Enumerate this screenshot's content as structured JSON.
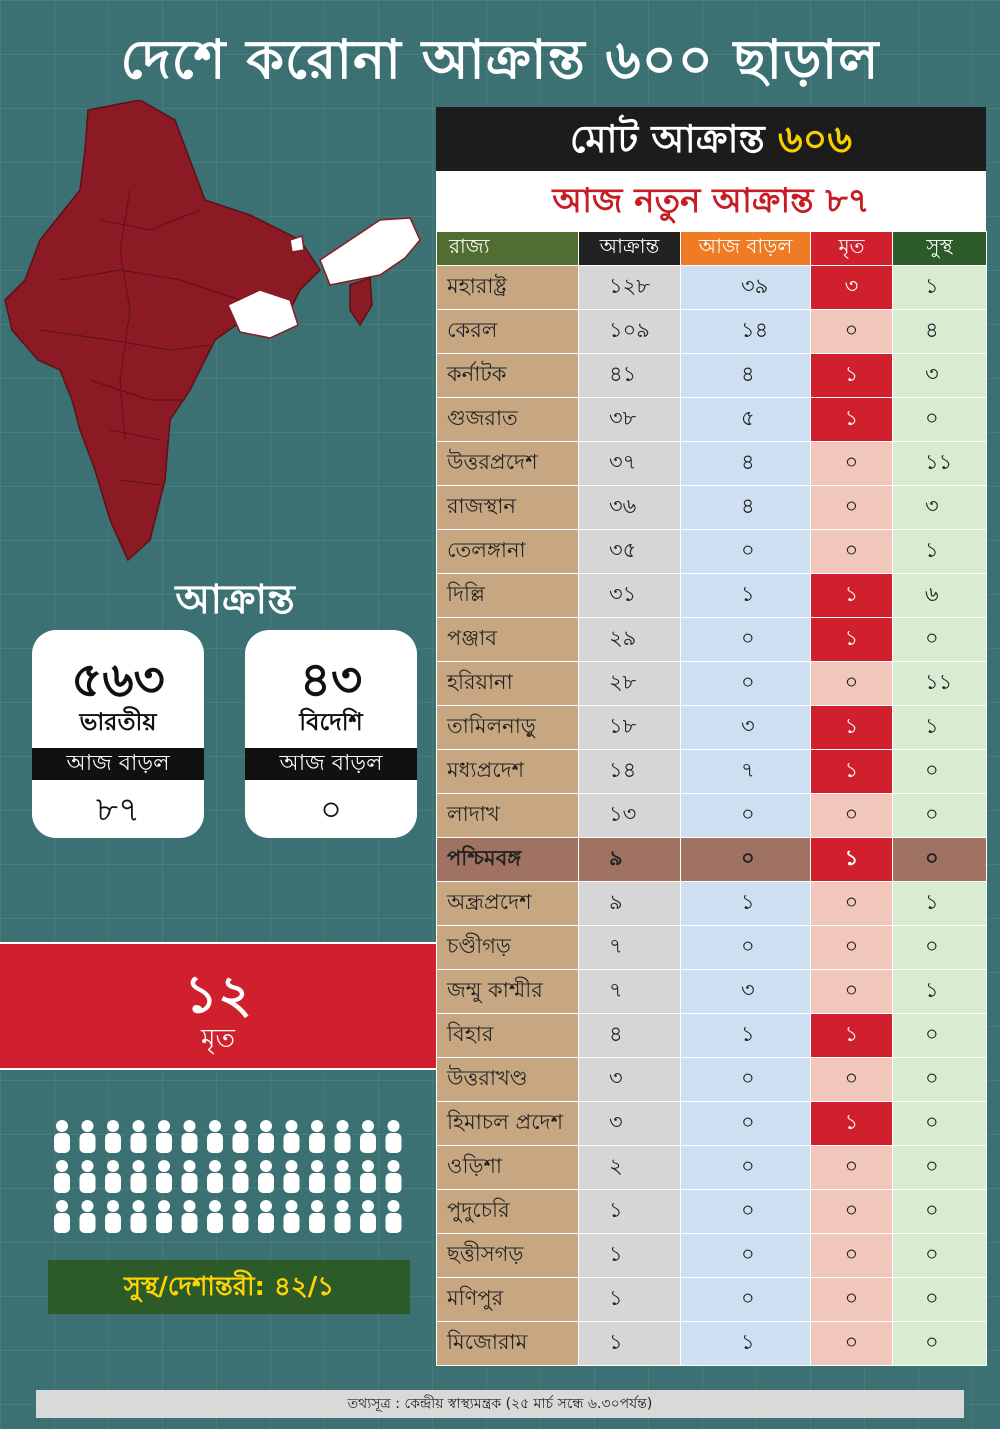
{
  "headline": "দেশে করোনা আক্রান্ত ৬০০ ছাড়াল",
  "affected_label": "আক্রান্ত",
  "cards": [
    {
      "number": "৫৬৩",
      "label": "ভারতীয়",
      "bar": "আজ বাড়ল",
      "increase": "৮৭"
    },
    {
      "number": "৪৩",
      "label": "বিদেশি",
      "bar": "আজ বাড়ল",
      "increase": "০"
    }
  ],
  "deaths": {
    "number": "১২",
    "label": "মৃত"
  },
  "recovered": {
    "text": "সুস্থ/দেশান্তরী: ৪২/১"
  },
  "people_icons": {
    "count": 42
  },
  "panel": {
    "total_label": "মোট আক্রান্ত",
    "total_value": "৬০৬",
    "new_today": "আজ নতুন আক্রান্ত ৮৭",
    "headers": [
      "রাজ্য",
      "আক্রান্ত",
      "আজ বাড়ল",
      "মৃত",
      "সুস্থ"
    ],
    "rows": [
      [
        "মহারাষ্ট্র",
        "১২৮",
        "৩৯",
        "৩",
        "১"
      ],
      [
        "কেরল",
        "১০৯",
        "১৪",
        "০",
        "৪"
      ],
      [
        "কর্নাটক",
        "৪১",
        "৪",
        "১",
        "৩"
      ],
      [
        "গুজরাত",
        "৩৮",
        "৫",
        "১",
        "০"
      ],
      [
        "উত্তরপ্রদেশ",
        "৩৭",
        "৪",
        "০",
        "১১"
      ],
      [
        "রাজস্থান",
        "৩৬",
        "৪",
        "০",
        "৩"
      ],
      [
        "তেলঙ্গানা",
        "৩৫",
        "০",
        "০",
        "১"
      ],
      [
        "দিল্লি",
        "৩১",
        "১",
        "১",
        "৬"
      ],
      [
        "পঞ্জাব",
        "২৯",
        "০",
        "১",
        "০"
      ],
      [
        "হরিয়ানা",
        "২৮",
        "০",
        "০",
        "১১"
      ],
      [
        "তামিলনাড়ু",
        "১৮",
        "৩",
        "১",
        "১"
      ],
      [
        "মধ্যপ্রদেশ",
        "১৪",
        "৭",
        "১",
        "০"
      ],
      [
        "লাদাখ",
        "১৩",
        "০",
        "০",
        "০"
      ],
      [
        "পশ্চিমবঙ্গ",
        "৯",
        "০",
        "১",
        "০"
      ],
      [
        "অন্ধ্রপ্রদেশ",
        "৯",
        "১",
        "০",
        "১"
      ],
      [
        "চণ্ডীগড়",
        "৭",
        "০",
        "০",
        "০"
      ],
      [
        "জম্মু কাশ্মীর",
        "৭",
        "৩",
        "০",
        "১"
      ],
      [
        "বিহার",
        "৪",
        "১",
        "১",
        "০"
      ],
      [
        "উত্তরাখণ্ড",
        "৩",
        "০",
        "০",
        "০"
      ],
      [
        "হিমাচল প্রদেশ",
        "৩",
        "০",
        "১",
        "০"
      ],
      [
        "ওড়িশা",
        "২",
        "০",
        "০",
        "০"
      ],
      [
        "পুদুচেরি",
        "১",
        "০",
        "০",
        "০"
      ],
      [
        "ছত্তীসগড়",
        "১",
        "০",
        "০",
        "০"
      ],
      [
        "মণিপুর",
        "১",
        "০",
        "০",
        "০"
      ],
      [
        "মিজোরাম",
        "১",
        "১",
        "০",
        "০"
      ]
    ],
    "highlight_row": "পশ্চিমবঙ্গ"
  },
  "footer": "তথ্যসূত্র : কেন্দ্রীয় স্বাস্থ্যমন্ত্রক (২৫ মার্চ সন্ধে ৬.৩০পর্যন্ত)",
  "colors": {
    "background": "#3b7173",
    "map_fill": "#8b1a24",
    "map_unaffected": "#ffffff",
    "death_red": "#d0202d",
    "total_value": "#f7d000",
    "new_cases_text": "#c71c24",
    "recovered_text": "#ffd400"
  }
}
